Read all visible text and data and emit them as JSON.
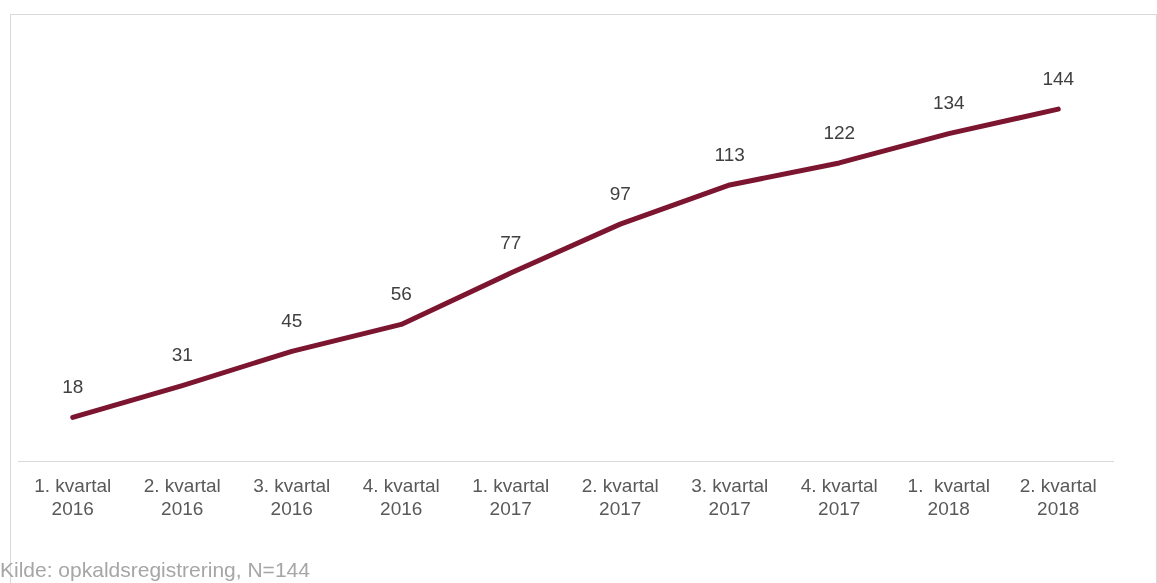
{
  "chart_data": {
    "type": "line",
    "categories": [
      "1. kvartal\n2016",
      "2. kvartal\n2016",
      "3. kvartal\n2016",
      "4. kvartal\n2016",
      "1. kvartal\n2017",
      "2. kvartal\n2017",
      "3. kvartal\n2017",
      "4. kvartal\n2017",
      "1.  kvartal\n2018",
      "2. kvartal\n2018"
    ],
    "series": [
      {
        "color": "#7b1530",
        "values": [
          18,
          31,
          45,
          56,
          77,
          97,
          113,
          122,
          134,
          144
        ]
      }
    ],
    "data_labels": true,
    "legend": false,
    "grid": false,
    "marker": "none",
    "line_style": "solid",
    "annotations": [
      "Kilde: opkaldsregistrering, N=144"
    ]
  }
}
